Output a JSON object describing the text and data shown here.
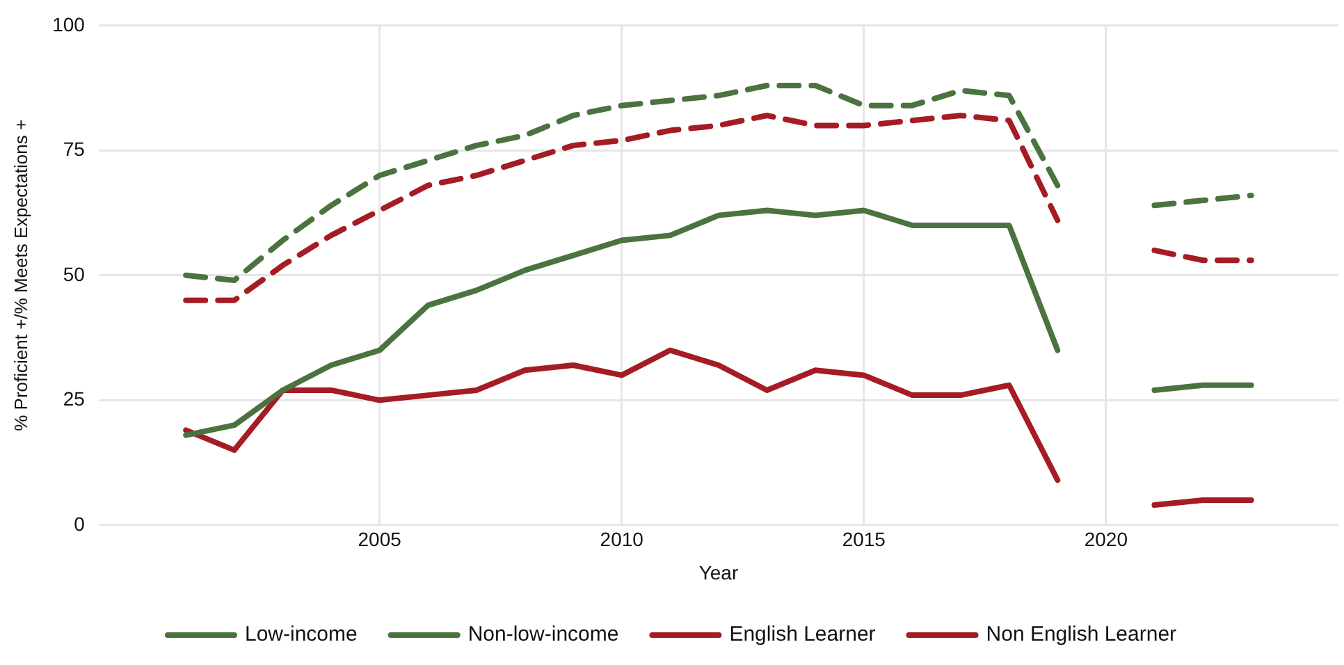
{
  "chart_data": {
    "type": "line",
    "xlabel": "Year",
    "ylabel": "% Proficient +/% Meets Expectations +",
    "x": [
      2001,
      2002,
      2003,
      2004,
      2005,
      2006,
      2007,
      2008,
      2009,
      2010,
      2011,
      2012,
      2013,
      2014,
      2015,
      2016,
      2017,
      2018,
      2019,
      2020,
      2021,
      2022,
      2023
    ],
    "xlim": [
      1999.2,
      2024.8
    ],
    "xticks": [
      2005,
      2010,
      2015,
      2020
    ],
    "ylim": [
      0,
      100
    ],
    "yticks": [
      0,
      25,
      50,
      75,
      100
    ],
    "grid": true,
    "legend": "bottom",
    "marker": "none",
    "series": [
      {
        "name": "Low-income",
        "color": "#4a7340",
        "line_style": "solid",
        "values": [
          18,
          20,
          27,
          32,
          35,
          44,
          47,
          51,
          54,
          57,
          58,
          62,
          63,
          62,
          63,
          60,
          60,
          60,
          35,
          null,
          27,
          28,
          28
        ]
      },
      {
        "name": "Non-low-income",
        "color": "#4a7340",
        "line_style": "dashed",
        "values": [
          50,
          49,
          57,
          64,
          70,
          73,
          76,
          78,
          82,
          84,
          85,
          86,
          88,
          88,
          84,
          84,
          87,
          86,
          68,
          null,
          64,
          65,
          66
        ]
      },
      {
        "name": "English Learner",
        "color": "#a51c24",
        "line_style": "solid",
        "values": [
          19,
          15,
          27,
          27,
          25,
          26,
          27,
          31,
          32,
          30,
          35,
          32,
          27,
          31,
          30,
          26,
          26,
          28,
          9,
          null,
          4,
          5,
          5
        ]
      },
      {
        "name": "Non English Learner",
        "color": "#a51c24",
        "line_style": "dashed",
        "values": [
          45,
          45,
          52,
          58,
          63,
          68,
          70,
          73,
          76,
          77,
          79,
          80,
          82,
          80,
          80,
          81,
          82,
          81,
          61,
          null,
          55,
          53,
          53
        ]
      }
    ]
  }
}
